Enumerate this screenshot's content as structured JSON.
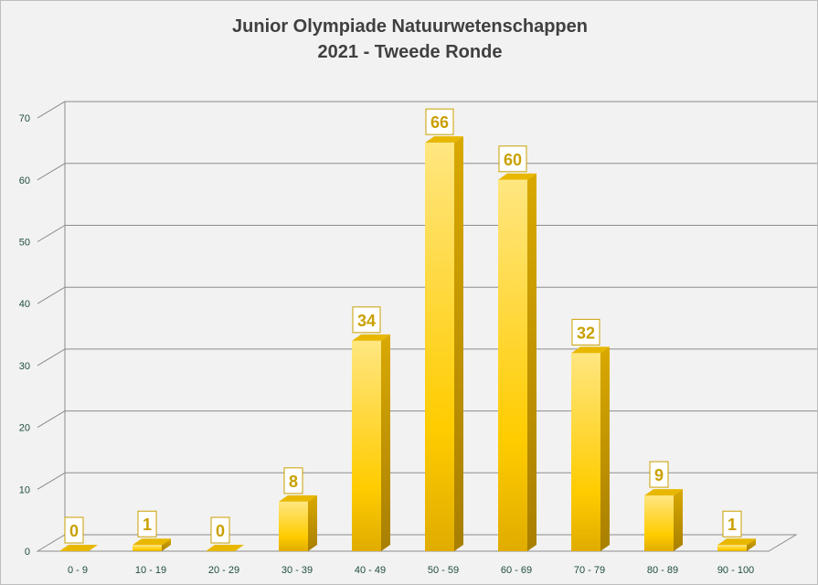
{
  "chart_data": {
    "type": "bar",
    "title": "Junior Olympiade Natuurwetenschappen",
    "subtitle": "2021 - Tweede Ronde",
    "xlabel": "",
    "ylabel": "",
    "categories": [
      "0 - 9",
      "10 - 19",
      "20 - 29",
      "30 - 39",
      "40 - 49",
      "50 - 59",
      "60 - 69",
      "70 - 79",
      "80 - 89",
      "90 - 100"
    ],
    "values": [
      0,
      1,
      0,
      8,
      34,
      66,
      60,
      32,
      9,
      1
    ],
    "ylim": [
      0,
      70
    ],
    "yticks": [
      0,
      10,
      20,
      30,
      40,
      50,
      60,
      70
    ],
    "grid": true,
    "legend": "none",
    "style": "3d-column",
    "colors": {
      "bar_light": "#ffe680",
      "bar_mid": "#ffcc00",
      "bar_dark": "#c89c00",
      "label_text": "#c9a000",
      "axis_text": "#1f4e3d",
      "grid": "#8c8c8c"
    }
  }
}
